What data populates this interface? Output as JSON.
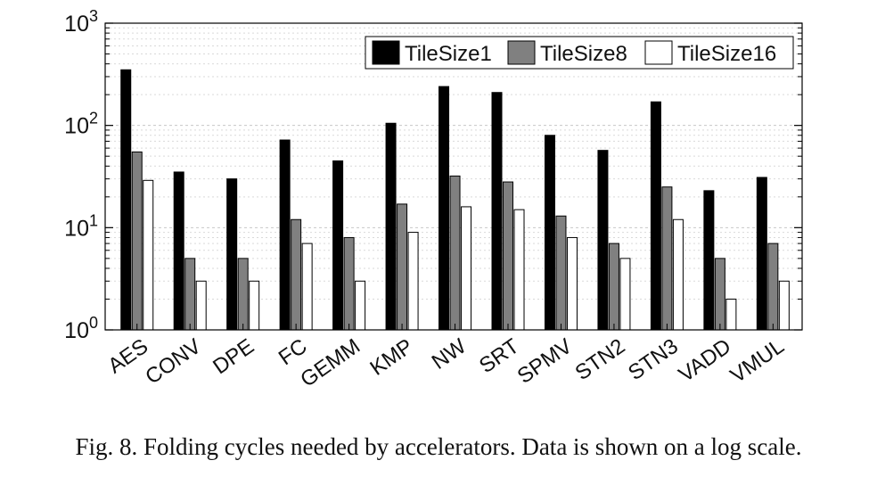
{
  "chart_data": {
    "type": "bar",
    "yscale": "log",
    "ylim": [
      1,
      1000
    ],
    "yticks": [
      {
        "value": 1,
        "base": "10",
        "exp": "0"
      },
      {
        "value": 10,
        "base": "10",
        "exp": "1"
      },
      {
        "value": 100,
        "base": "10",
        "exp": "2"
      },
      {
        "value": 1000,
        "base": "10",
        "exp": "3"
      }
    ],
    "categories": [
      "AES",
      "CONV",
      "DPE",
      "FC",
      "GEMM",
      "KMP",
      "NW",
      "SRT",
      "SPMV",
      "STN2",
      "STN3",
      "VADD",
      "VMUL"
    ],
    "series": [
      {
        "name": "TileSize1",
        "color": "#000000",
        "values": [
          350,
          35,
          30,
          72,
          45,
          105,
          240,
          210,
          80,
          57,
          170,
          23,
          31
        ]
      },
      {
        "name": "TileSize8",
        "color": "#808080",
        "values": [
          55,
          5,
          5,
          12,
          8,
          17,
          32,
          28,
          13,
          7,
          25,
          5,
          7
        ]
      },
      {
        "name": "TileSize16",
        "color": "#ffffff",
        "values": [
          29,
          3,
          3,
          7,
          3,
          9,
          16,
          15,
          8,
          5,
          12,
          2,
          3
        ]
      }
    ],
    "grid": true,
    "minor_grid": true,
    "legend_position": "top-right"
  },
  "caption": "Fig. 8.  Folding cycles needed by accelerators. Data is shown on a log scale."
}
